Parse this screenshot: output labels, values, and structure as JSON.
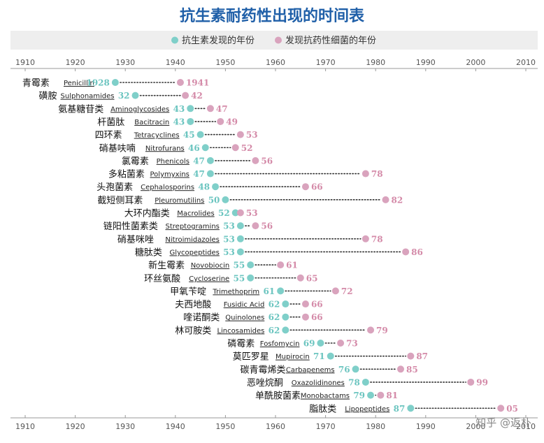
{
  "chart_data": {
    "type": "scatter",
    "title": "抗生素耐药性出现的时间表",
    "legend": {
      "position": "top",
      "discovery": "抗生素发现的年份",
      "resistance": "发现抗药性细菌的年份"
    },
    "colors": {
      "discovery": "#7fcfc9",
      "resistance": "#d9a3bd",
      "title": "#1f5fa8",
      "legend_bg": "#eeeeee",
      "dots": "#333333"
    },
    "xlim": [
      1910,
      2010
    ],
    "xticks": [
      "1910",
      "1920",
      "1930",
      "1940",
      "1950",
      "1960",
      "1970",
      "1980",
      "1990",
      "2000",
      "2010"
    ],
    "grid": false,
    "rows": [
      {
        "cn": "青霉素",
        "en": "Penicillin",
        "discovered": 1928,
        "resistance": 1941,
        "d_label": "1928",
        "r_label": "1941"
      },
      {
        "cn": "磺胺",
        "en": "Sulphonamides",
        "discovered": 1932,
        "resistance": 1942,
        "d_label": "32",
        "r_label": "42"
      },
      {
        "cn": "氨基糖苷类",
        "en": "Aminoglycosides",
        "discovered": 1943,
        "resistance": 1947,
        "d_label": "43",
        "r_label": "47"
      },
      {
        "cn": "杆菌肽",
        "en": "Bacitracin",
        "discovered": 1943,
        "resistance": 1949,
        "d_label": "43",
        "r_label": "49"
      },
      {
        "cn": "四环素",
        "en": "Tetracyclines",
        "discovered": 1945,
        "resistance": 1953,
        "d_label": "45",
        "r_label": "53"
      },
      {
        "cn": "硝基呋喃",
        "en": "Nitrofurans",
        "discovered": 1946,
        "resistance": 1952,
        "d_label": "46",
        "r_label": "52"
      },
      {
        "cn": "氯霉素",
        "en": "Phenicols",
        "discovered": 1947,
        "resistance": 1956,
        "d_label": "47",
        "r_label": "56"
      },
      {
        "cn": "多粘菌素",
        "en": "Polymyxins",
        "discovered": 1947,
        "resistance": 1978,
        "d_label": "47",
        "r_label": "78"
      },
      {
        "cn": "头孢菌素",
        "en": "Cephalosporins",
        "discovered": 1948,
        "resistance": 1966,
        "d_label": "48",
        "r_label": "66"
      },
      {
        "cn": "截短侧耳素",
        "en": "Pleuromutilins",
        "discovered": 1950,
        "resistance": 1982,
        "d_label": "50",
        "r_label": "82"
      },
      {
        "cn": "大环内酯类",
        "en": "Macrolides",
        "discovered": 1952,
        "resistance": 1953,
        "d_label": "52",
        "r_label": "53"
      },
      {
        "cn": "链阳性菌素类",
        "en": "Streptogramins",
        "discovered": 1953,
        "resistance": 1956,
        "d_label": "53",
        "r_label": "56"
      },
      {
        "cn": "硝基咪唑",
        "en": "Nitroimidazoles",
        "discovered": 1953,
        "resistance": 1978,
        "d_label": "53",
        "r_label": "78"
      },
      {
        "cn": "糖肽类",
        "en": "Glycopeptides",
        "discovered": 1953,
        "resistance": 1986,
        "d_label": "53",
        "r_label": "86"
      },
      {
        "cn": "新生霉素",
        "en": "Novobiocin",
        "discovered": 1955,
        "resistance": 1961,
        "d_label": "55",
        "r_label": "61"
      },
      {
        "cn": "环丝氨酸",
        "en": "Cycloserine",
        "discovered": 1955,
        "resistance": 1965,
        "d_label": "55",
        "r_label": "65"
      },
      {
        "cn": "甲氧苄啶",
        "en": "Trimethoprim",
        "discovered": 1961,
        "resistance": 1972,
        "d_label": "61",
        "r_label": "72"
      },
      {
        "cn": "夫西地酸",
        "en": "Fusidic Acid",
        "discovered": 1962,
        "resistance": 1966,
        "d_label": "62",
        "r_label": "66"
      },
      {
        "cn": "喹诺酮类",
        "en": "Quinolones",
        "discovered": 1962,
        "resistance": 1966,
        "d_label": "62",
        "r_label": "66"
      },
      {
        "cn": "林可胺类",
        "en": "Lincosamides",
        "discovered": 1962,
        "resistance": 1979,
        "d_label": "62",
        "r_label": "79"
      },
      {
        "cn": "磷霉素",
        "en": "Fosfomycin",
        "discovered": 1969,
        "resistance": 1973,
        "d_label": "69",
        "r_label": "73"
      },
      {
        "cn": "莫匹罗星",
        "en": "Mupirocin",
        "discovered": 1971,
        "resistance": 1987,
        "d_label": "71",
        "r_label": "87"
      },
      {
        "cn": "碳青霉烯类",
        "en": "Carbapenems",
        "discovered": 1976,
        "resistance": 1985,
        "d_label": "76",
        "r_label": "85"
      },
      {
        "cn": "恶唑烷酮",
        "en": "Oxazolidinones",
        "discovered": 1978,
        "resistance": 1999,
        "d_label": "78",
        "r_label": "99"
      },
      {
        "cn": "单酰胺菌素",
        "en": "Monobactams",
        "discovered": 1979,
        "resistance": 1981,
        "d_label": "79",
        "r_label": "81"
      },
      {
        "cn": "脂肽类",
        "en": "Lipopeptides",
        "discovered": 1987,
        "resistance": 2005,
        "d_label": "87",
        "r_label": "05"
      }
    ]
  },
  "watermark": "知乎 @返朴"
}
